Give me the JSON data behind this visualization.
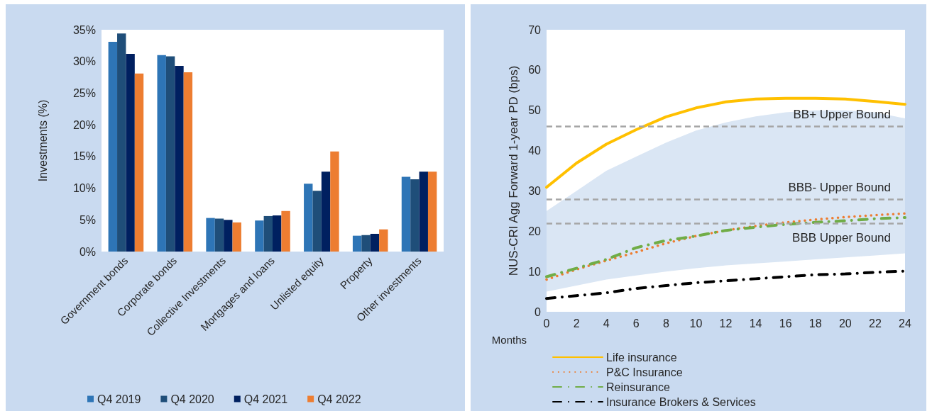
{
  "chart_data": [
    {
      "type": "bar",
      "ylabel": "Investments (%)",
      "categories": [
        "Government bonds",
        "Corporate bonds",
        "Collective Investments",
        "Mortgages and loans",
        "Unlisted equity",
        "Property",
        "Other investments"
      ],
      "series": [
        {
          "name": "Q4 2019",
          "color": "#2e75b6",
          "values": [
            33.1,
            31.0,
            5.3,
            4.9,
            10.7,
            2.5,
            11.8
          ]
        },
        {
          "name": "Q4 2020",
          "color": "#1f4e79",
          "values": [
            34.4,
            30.8,
            5.2,
            5.6,
            9.6,
            2.6,
            11.4
          ]
        },
        {
          "name": "Q4 2021",
          "color": "#002060",
          "values": [
            31.2,
            29.3,
            5.0,
            5.7,
            12.6,
            2.8,
            12.6
          ]
        },
        {
          "name": "Q4 2022",
          "color": "#ed7d31",
          "values": [
            28.1,
            28.3,
            4.6,
            6.4,
            15.8,
            3.5,
            12.6
          ]
        }
      ],
      "ylim": [
        0,
        35
      ],
      "yticks": [
        {
          "value": 0,
          "label": "0%"
        },
        {
          "value": 5,
          "label": "5%"
        },
        {
          "value": 10,
          "label": "10%"
        },
        {
          "value": 15,
          "label": "15%"
        },
        {
          "value": 20,
          "label": "20%"
        },
        {
          "value": 25,
          "label": "25%"
        },
        {
          "value": 30,
          "label": "30%"
        },
        {
          "value": 35,
          "label": "35%"
        }
      ],
      "grid": false,
      "legend": "bottom"
    },
    {
      "type": "line",
      "xlabel": "Months",
      "ylabel": "NUS-CRI Agg Forward 1-year PD (bps)",
      "x": [
        0,
        2,
        4,
        6,
        8,
        10,
        12,
        14,
        16,
        18,
        20,
        22,
        24
      ],
      "series": [
        {
          "color": "#dae6f4",
          "values": [
            null,
            null,
            null,
            null,
            null,
            null,
            null,
            null,
            null,
            null,
            null,
            null,
            null
          ],
          "lower": [
            5,
            6.5,
            8,
            9,
            10,
            10.8,
            11.5,
            12,
            12.5,
            13,
            13.5,
            14,
            14.5
          ],
          "upper": [
            25,
            30,
            35,
            38.5,
            42,
            45,
            47,
            48.5,
            49.5,
            50,
            50,
            49.5,
            48
          ]
        },
        {
          "name": "Life insurance",
          "color": "#ffc000",
          "line_style": "solid",
          "values": [
            30.9,
            36.9,
            41.6,
            45.2,
            48.4,
            50.6,
            52.1,
            52.8,
            53,
            53,
            52.8,
            52.2,
            51.5
          ]
        },
        {
          "name": "P&C Insurance",
          "color": "#ed7d31",
          "line_style": "dotted",
          "values": [
            8,
            10.5,
            12.7,
            14.8,
            17,
            18.8,
            20.2,
            21.3,
            22.2,
            22.9,
            23.5,
            24,
            24.4
          ]
        },
        {
          "name": "Reinsurance",
          "color": "#70ad47",
          "line_style": "dashed",
          "values": [
            8.7,
            10.8,
            13,
            15.9,
            17.7,
            18.8,
            20.2,
            21,
            21.7,
            22.2,
            22.6,
            23.1,
            23.4
          ]
        },
        {
          "name": "Insurance Brokers & Services",
          "color": "#000000",
          "line_style": "dashed",
          "values": [
            3.3,
            4,
            4.7,
            5.8,
            6.5,
            7.2,
            7.7,
            8.2,
            8.7,
            9.2,
            9.4,
            9.8,
            10.1
          ]
        }
      ],
      "ref_lines": [
        {
          "axis": "y",
          "value": 46,
          "label": "BB+ Upper Bound",
          "color": "#a6a6a6",
          "line_style": "dashed"
        },
        {
          "axis": "y",
          "value": 28,
          "label": "BBB- Upper Bound",
          "color": "#a6a6a6",
          "line_style": "dashed"
        },
        {
          "axis": "y",
          "value": 22,
          "label": "BBB Upper Bound",
          "color": "#a6a6a6",
          "line_style": "dashed"
        }
      ],
      "xlim": [
        0,
        24
      ],
      "xticks": [
        0,
        2,
        4,
        6,
        8,
        10,
        12,
        14,
        16,
        18,
        20,
        22,
        24
      ],
      "ylim": [
        0,
        70
      ],
      "yticks": [
        0,
        10,
        20,
        30,
        40,
        50,
        60,
        70
      ],
      "grid": false,
      "legend": "bottom",
      "marker": "none"
    }
  ]
}
